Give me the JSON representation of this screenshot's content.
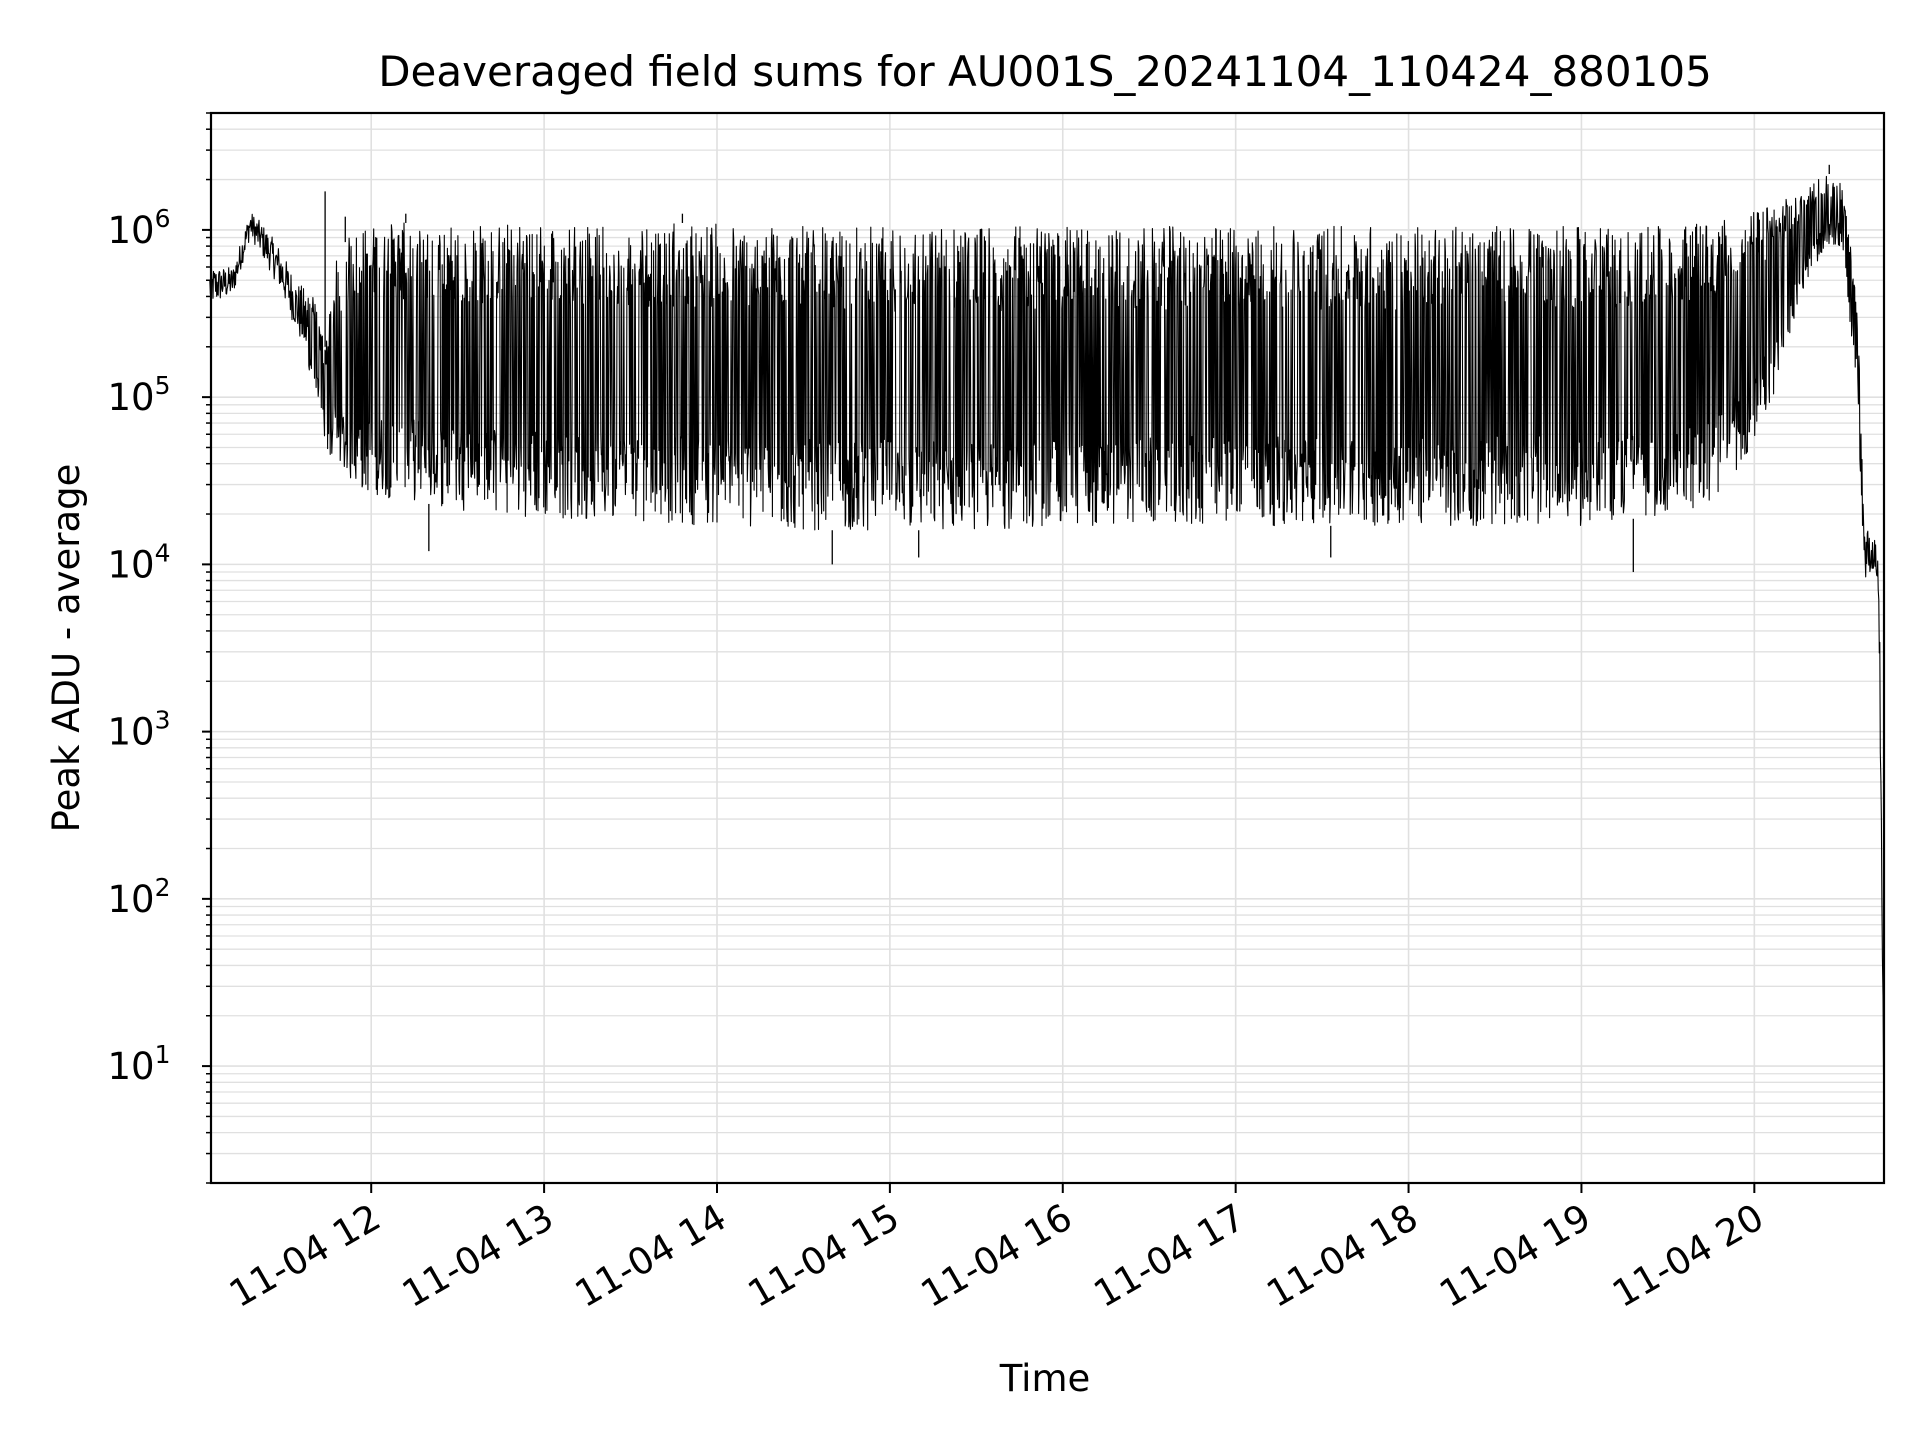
{
  "chart_data": {
    "type": "line",
    "title": "Deaveraged field sums for AU001S_20241104_110424_880105",
    "xlabel": "Time",
    "ylabel": "Peak ADU - average",
    "y_scale": "log",
    "grid": true,
    "xlim": [
      "2024-11-04 11:04:24",
      "2024-11-04 20:45:00"
    ],
    "ylim": [
      2,
      5000000
    ],
    "x_ticks": [
      {
        "value": "2024-11-04 12:00",
        "label": "11-04 12"
      },
      {
        "value": "2024-11-04 13:00",
        "label": "11-04 13"
      },
      {
        "value": "2024-11-04 14:00",
        "label": "11-04 14"
      },
      {
        "value": "2024-11-04 15:00",
        "label": "11-04 15"
      },
      {
        "value": "2024-11-04 16:00",
        "label": "11-04 16"
      },
      {
        "value": "2024-11-04 17:00",
        "label": "11-04 17"
      },
      {
        "value": "2024-11-04 18:00",
        "label": "11-04 18"
      },
      {
        "value": "2024-11-04 19:00",
        "label": "11-04 19"
      },
      {
        "value": "2024-11-04 20:00",
        "label": "11-04 20"
      }
    ],
    "y_ticks": [
      {
        "value": 10,
        "base": "10",
        "exp": "1"
      },
      {
        "value": 100,
        "base": "10",
        "exp": "2"
      },
      {
        "value": 1000,
        "base": "10",
        "exp": "3"
      },
      {
        "value": 10000,
        "base": "10",
        "exp": "4"
      },
      {
        "value": 100000,
        "base": "10",
        "exp": "5"
      },
      {
        "value": 1000000,
        "base": "10",
        "exp": "6"
      }
    ],
    "colors": {
      "line": "#000000",
      "grid": "#e0e0e0",
      "axes": "#000000",
      "background": "#ffffff"
    },
    "series": [
      {
        "x": [
          "2024-11-04 11:04",
          "2024-11-04 11:12",
          "2024-11-04 11:18",
          "2024-11-04 11:22",
          "2024-11-04 11:28",
          "2024-11-04 11:34",
          "2024-11-04 11:40",
          "2024-11-04 11:44",
          "2024-11-04 11:48",
          "2024-11-04 11:52",
          "2024-11-04 11:56",
          "2024-11-04 12:05",
          "2024-11-04 12:15",
          "2024-11-04 12:25",
          "2024-11-04 12:40",
          "2024-11-04 13:00",
          "2024-11-04 13:30",
          "2024-11-04 14:00",
          "2024-11-04 14:30",
          "2024-11-04 15:00",
          "2024-11-04 15:30",
          "2024-11-04 16:00",
          "2024-11-04 16:30",
          "2024-11-04 17:00",
          "2024-11-04 17:30",
          "2024-11-04 18:00",
          "2024-11-04 18:30",
          "2024-11-04 19:00",
          "2024-11-04 19:30",
          "2024-11-04 19:45",
          "2024-11-04 20:00",
          "2024-11-04 20:10",
          "2024-11-04 20:18",
          "2024-11-04 20:25",
          "2024-11-04 20:30",
          "2024-11-04 20:34",
          "2024-11-04 20:36",
          "2024-11-04 20:38",
          "2024-11-04 20:40",
          "2024-11-04 20:42",
          "2024-11-04 20:43",
          "2024-11-04 20:44",
          "2024-11-04 20:45"
        ],
        "lower": [
          350000,
          400000,
          900000,
          700000,
          450000,
          250000,
          120000,
          50000,
          38000,
          32000,
          28000,
          25000,
          24000,
          22000,
          20000,
          19000,
          18000,
          17000,
          16000,
          16000,
          16000,
          17000,
          17000,
          17000,
          17000,
          17000,
          17000,
          17000,
          20000,
          23000,
          50000,
          150000,
          500000,
          800000,
          800000,
          200000,
          100000,
          7000,
          9000,
          9000,
          6000,
          300,
          4
        ],
        "upper": [
          600000,
          600000,
          1300000,
          1100000,
          800000,
          500000,
          400000,
          200000,
          700000,
          900000,
          1000000,
          1100000,
          1100000,
          1100000,
          1100000,
          1100000,
          1100000,
          1100000,
          1050000,
          1050000,
          1050000,
          1050000,
          1050000,
          1050000,
          1050000,
          1050000,
          1050000,
          1050000,
          1050000,
          1100000,
          1300000,
          1500000,
          1800000,
          2200000,
          2000000,
          700000,
          300000,
          20000,
          15000,
          14000,
          12000,
          1500,
          4
        ],
        "spikes": [
          {
            "x": "2024-11-04 11:44",
            "y": 1700000
          },
          {
            "x": "2024-11-04 11:51",
            "y": 1200000
          },
          {
            "x": "2024-11-04 12:12",
            "y": 1250000
          },
          {
            "x": "2024-11-04 13:48",
            "y": 1250000
          },
          {
            "x": "2024-11-04 20:26",
            "y": 2450000
          },
          {
            "x": "2024-11-04 12:20",
            "y": 12000
          },
          {
            "x": "2024-11-04 14:40",
            "y": 10000
          },
          {
            "x": "2024-11-04 19:18",
            "y": 9000
          },
          {
            "x": "2024-11-04 17:33",
            "y": 11000
          },
          {
            "x": "2024-11-04 15:10",
            "y": 11000
          }
        ]
      }
    ]
  }
}
